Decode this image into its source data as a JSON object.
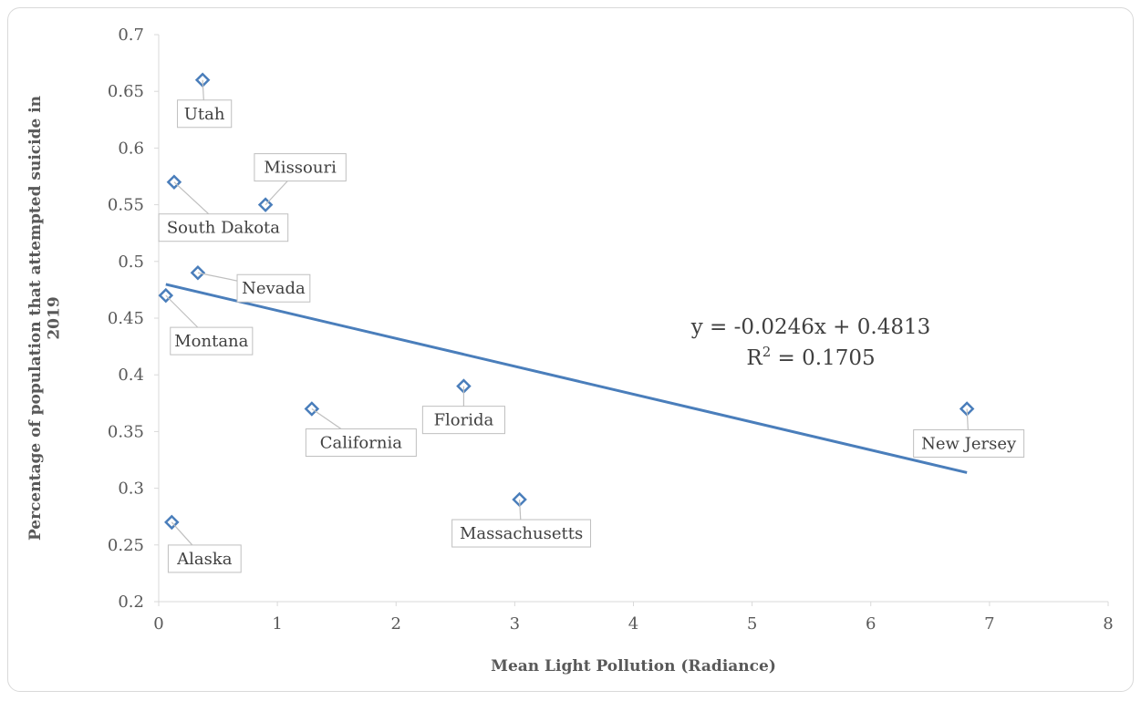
{
  "chart_data": {
    "type": "scatter",
    "xlabel": "Mean Light Pollution (Radiance)",
    "ylabel": "Percentage of population that attempted suicide in 2019",
    "xlim": [
      0,
      8
    ],
    "ylim": [
      0.2,
      0.7
    ],
    "x_ticks": [
      "0",
      "1",
      "2",
      "3",
      "4",
      "5",
      "6",
      "7",
      "8"
    ],
    "y_ticks": [
      "0.2",
      "0.25",
      "0.3",
      "0.35",
      "0.4",
      "0.45",
      "0.5",
      "0.55",
      "0.6",
      "0.65",
      "0.7"
    ],
    "grid": false,
    "marker_color": "#4a7ebb",
    "trendline_color": "#4a7ebb",
    "points": [
      {
        "label": "Utah",
        "x": 0.37,
        "y": 0.66
      },
      {
        "label": "Missouri",
        "x": 0.9,
        "y": 0.55
      },
      {
        "label": "South Dakota",
        "x": 0.13,
        "y": 0.57
      },
      {
        "label": "Nevada",
        "x": 0.33,
        "y": 0.49
      },
      {
        "label": "Montana",
        "x": 0.06,
        "y": 0.47
      },
      {
        "label": "California",
        "x": 1.29,
        "y": 0.37
      },
      {
        "label": "Florida",
        "x": 2.57,
        "y": 0.39
      },
      {
        "label": "New Jersey",
        "x": 6.81,
        "y": 0.37
      },
      {
        "label": "Massachusetts",
        "x": 3.04,
        "y": 0.29
      },
      {
        "label": "Alaska",
        "x": 0.11,
        "y": 0.27
      }
    ],
    "trendline": {
      "slope": -0.0246,
      "intercept": 0.4813,
      "x_start": 0.06,
      "x_end": 6.81,
      "equation": "y = -0.0246x + 0.4813",
      "r2_prefix": "R",
      "r2_sup": "2",
      "r2_suffix": " = 0.1705"
    }
  }
}
